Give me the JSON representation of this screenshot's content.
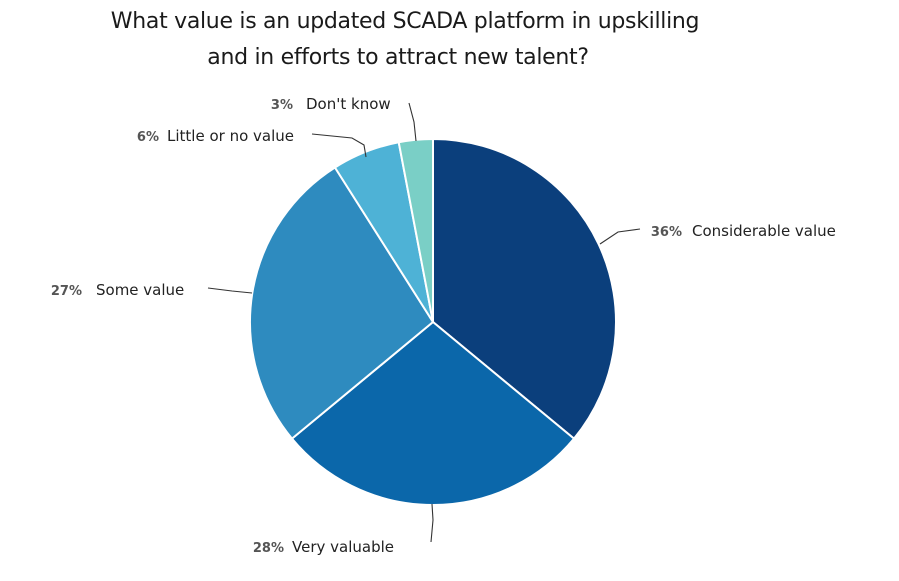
{
  "chart_data": {
    "type": "pie",
    "title": [
      "What value is an updated SCADA platform in upskilling",
      "and in efforts to attract new talent?"
    ],
    "slices": [
      {
        "label": "Considerable value",
        "value": 36,
        "value_label": "36%",
        "color": "#0b3f7c"
      },
      {
        "label": "Very valuable",
        "value": 28,
        "value_label": "28%",
        "color": "#0b67aa"
      },
      {
        "label": "Some value",
        "value": 27,
        "value_label": "27%",
        "color": "#2e8bbf"
      },
      {
        "label": "Little or no value",
        "value": 6,
        "value_label": "6%",
        "color": "#4eb2d6"
      },
      {
        "label": "Don't know",
        "value": 3,
        "value_label": "3%",
        "color": "#7acfc6"
      }
    ],
    "start": "12 o'clock",
    "direction": "clockwise",
    "legend": "none (labels with leader lines)"
  }
}
